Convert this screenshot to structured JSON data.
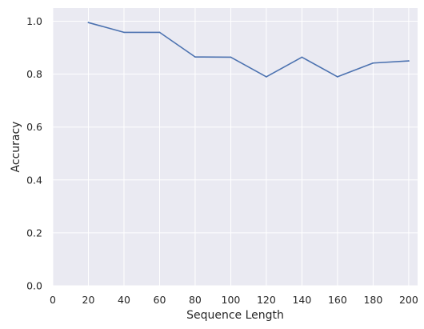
{
  "chart_data": {
    "type": "line",
    "title": "",
    "xlabel": "Sequence Length",
    "ylabel": "Accuracy",
    "xlim": [
      0,
      205
    ],
    "ylim": [
      0.0,
      1.05
    ],
    "x_ticks": [
      0,
      20,
      40,
      60,
      80,
      100,
      120,
      140,
      160,
      180,
      200
    ],
    "y_ticks": [
      0.0,
      0.2,
      0.4,
      0.6,
      0.8,
      1.0
    ],
    "y_tick_labels": [
      "0.0",
      "0.2",
      "0.4",
      "0.6",
      "0.8",
      "1.0"
    ],
    "grid": true,
    "legend": "none",
    "colors": {
      "background": "#eaeaf2",
      "grid": "#ffffff",
      "line": "#4c72b0"
    },
    "series": [
      {
        "x": [
          20,
          40,
          60,
          80,
          100,
          120,
          140,
          160,
          180,
          200
        ],
        "y": [
          0.995,
          0.958,
          0.958,
          0.865,
          0.864,
          0.79,
          0.864,
          0.79,
          0.842,
          0.85
        ]
      }
    ]
  }
}
